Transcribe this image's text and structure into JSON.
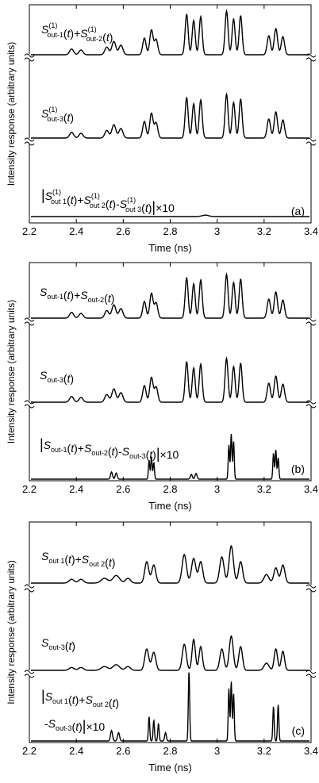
{
  "chart_data": [
    {
      "type": "line",
      "panel_label": "(a)",
      "xlabel": "Time (ns)",
      "ylabel": "Intensity response (arbitrary units)",
      "xlim": [
        2.2,
        3.4
      ],
      "x_ticks": [
        "2.2",
        "2.4",
        "2.6",
        "2.8",
        "3",
        "3.2",
        "3.4"
      ],
      "series": [
        {
          "name": "S(1)out-1(t)+S(1)out-2(t)",
          "peaks": [
            [
              2.38,
              0.12,
              0.012
            ],
            [
              2.42,
              0.1,
              0.012
            ],
            [
              2.53,
              0.16,
              0.012
            ],
            [
              2.56,
              0.28,
              0.012
            ],
            [
              2.59,
              0.2,
              0.012
            ],
            [
              2.69,
              0.35,
              0.01
            ],
            [
              2.72,
              0.52,
              0.01
            ],
            [
              2.74,
              0.32,
              0.01
            ],
            [
              2.87,
              0.85,
              0.009
            ],
            [
              2.9,
              0.72,
              0.009
            ],
            [
              2.93,
              0.8,
              0.009
            ],
            [
              3.04,
              0.92,
              0.009
            ],
            [
              3.07,
              0.75,
              0.009
            ],
            [
              3.1,
              0.82,
              0.009
            ],
            [
              3.22,
              0.4,
              0.01
            ],
            [
              3.25,
              0.55,
              0.01
            ],
            [
              3.28,
              0.38,
              0.01
            ]
          ]
        },
        {
          "name": "S(1)out-3(t)",
          "peaks": [
            [
              2.38,
              0.12,
              0.012
            ],
            [
              2.42,
              0.1,
              0.012
            ],
            [
              2.53,
              0.16,
              0.012
            ],
            [
              2.56,
              0.28,
              0.012
            ],
            [
              2.59,
              0.2,
              0.012
            ],
            [
              2.69,
              0.35,
              0.01
            ],
            [
              2.72,
              0.52,
              0.01
            ],
            [
              2.74,
              0.32,
              0.01
            ],
            [
              2.87,
              0.85,
              0.009
            ],
            [
              2.9,
              0.72,
              0.009
            ],
            [
              2.93,
              0.8,
              0.009
            ],
            [
              3.04,
              0.92,
              0.009
            ],
            [
              3.07,
              0.75,
              0.009
            ],
            [
              3.1,
              0.82,
              0.009
            ],
            [
              3.22,
              0.4,
              0.01
            ],
            [
              3.25,
              0.55,
              0.01
            ],
            [
              3.28,
              0.38,
              0.01
            ]
          ]
        },
        {
          "name": "|S(1)out 1(t)+S(1)out 2(t)-S(1)out 3(t)|×10",
          "peaks": [
            [
              2.95,
              0.03,
              0.02
            ]
          ]
        }
      ]
    },
    {
      "type": "line",
      "panel_label": "(b)",
      "xlabel": "Time (ns)",
      "ylabel": "Intensity response (arbitrary units)",
      "xlim": [
        2.2,
        3.4
      ],
      "x_ticks": [
        "2.2",
        "2.4",
        "2.6",
        "2.8",
        "3",
        "3.2",
        "3.4"
      ],
      "series": [
        {
          "name": "Sout-1(t)+Sout-2(t)",
          "peaks": [
            [
              2.38,
              0.12,
              0.012
            ],
            [
              2.42,
              0.1,
              0.012
            ],
            [
              2.53,
              0.16,
              0.012
            ],
            [
              2.56,
              0.28,
              0.012
            ],
            [
              2.59,
              0.2,
              0.012
            ],
            [
              2.69,
              0.35,
              0.01
            ],
            [
              2.72,
              0.52,
              0.01
            ],
            [
              2.74,
              0.32,
              0.01
            ],
            [
              2.87,
              0.85,
              0.009
            ],
            [
              2.9,
              0.72,
              0.009
            ],
            [
              2.93,
              0.8,
              0.009
            ],
            [
              3.04,
              0.92,
              0.009
            ],
            [
              3.07,
              0.75,
              0.009
            ],
            [
              3.1,
              0.82,
              0.009
            ],
            [
              3.22,
              0.4,
              0.01
            ],
            [
              3.25,
              0.55,
              0.01
            ],
            [
              3.28,
              0.38,
              0.01
            ]
          ]
        },
        {
          "name": "Sout-3(t)",
          "peaks": [
            [
              2.38,
              0.12,
              0.012
            ],
            [
              2.42,
              0.1,
              0.012
            ],
            [
              2.53,
              0.16,
              0.012
            ],
            [
              2.56,
              0.28,
              0.012
            ],
            [
              2.59,
              0.2,
              0.012
            ],
            [
              2.69,
              0.35,
              0.01
            ],
            [
              2.72,
              0.52,
              0.01
            ],
            [
              2.74,
              0.32,
              0.01
            ],
            [
              2.87,
              0.85,
              0.009
            ],
            [
              2.9,
              0.72,
              0.009
            ],
            [
              2.93,
              0.8,
              0.009
            ],
            [
              3.04,
              0.92,
              0.009
            ],
            [
              3.07,
              0.75,
              0.009
            ],
            [
              3.1,
              0.82,
              0.009
            ],
            [
              3.22,
              0.4,
              0.01
            ],
            [
              3.25,
              0.55,
              0.01
            ],
            [
              3.28,
              0.38,
              0.01
            ]
          ]
        },
        {
          "name": "|Sout-1(t)+Sout-2(t)-Sout-3(t)|×10",
          "peaks": [
            [
              2.55,
              0.15,
              0.006
            ],
            [
              2.57,
              0.13,
              0.006
            ],
            [
              2.71,
              0.4,
              0.004
            ],
            [
              2.72,
              0.48,
              0.004
            ],
            [
              2.73,
              0.35,
              0.004
            ],
            [
              2.89,
              0.1,
              0.006
            ],
            [
              2.91,
              0.12,
              0.006
            ],
            [
              3.05,
              0.72,
              0.004
            ],
            [
              3.06,
              0.95,
              0.004
            ],
            [
              3.07,
              0.8,
              0.004
            ],
            [
              3.24,
              0.55,
              0.004
            ],
            [
              3.25,
              0.62,
              0.004
            ],
            [
              3.26,
              0.45,
              0.004
            ]
          ]
        }
      ]
    },
    {
      "type": "line",
      "panel_label": "(c)",
      "xlabel": "Time (ns)",
      "ylabel": "Intensity response (arbitrary units)",
      "xlim": [
        2.2,
        3.4
      ],
      "x_ticks": [
        "2.2",
        "2.4",
        "2.6",
        "2.8",
        "3",
        "3.2",
        "3.4"
      ],
      "series": [
        {
          "name": "Sout 1(t)+Sout 2(t)",
          "peaks": [
            [
              2.38,
              0.08,
              0.015
            ],
            [
              2.42,
              0.08,
              0.015
            ],
            [
              2.52,
              0.1,
              0.02
            ],
            [
              2.57,
              0.16,
              0.02
            ],
            [
              2.62,
              0.1,
              0.015
            ],
            [
              2.7,
              0.45,
              0.012
            ],
            [
              2.73,
              0.38,
              0.012
            ],
            [
              2.86,
              0.6,
              0.013
            ],
            [
              2.9,
              0.52,
              0.013
            ],
            [
              2.93,
              0.45,
              0.012
            ],
            [
              3.02,
              0.55,
              0.013
            ],
            [
              3.06,
              0.78,
              0.013
            ],
            [
              3.1,
              0.45,
              0.012
            ],
            [
              3.21,
              0.18,
              0.015
            ],
            [
              3.25,
              0.32,
              0.012
            ],
            [
              3.28,
              0.38,
              0.012
            ]
          ]
        },
        {
          "name": "Sout-3(t)",
          "peaks": [
            [
              2.38,
              0.06,
              0.015
            ],
            [
              2.42,
              0.06,
              0.015
            ],
            [
              2.52,
              0.08,
              0.02
            ],
            [
              2.57,
              0.12,
              0.02
            ],
            [
              2.62,
              0.08,
              0.015
            ],
            [
              2.7,
              0.45,
              0.012
            ],
            [
              2.73,
              0.38,
              0.012
            ],
            [
              2.86,
              0.55,
              0.012
            ],
            [
              2.9,
              0.65,
              0.01
            ],
            [
              2.93,
              0.5,
              0.01
            ],
            [
              3.02,
              0.45,
              0.012
            ],
            [
              3.06,
              0.72,
              0.012
            ],
            [
              3.1,
              0.5,
              0.011
            ],
            [
              3.21,
              0.15,
              0.015
            ],
            [
              3.25,
              0.45,
              0.01
            ],
            [
              3.28,
              0.4,
              0.01
            ]
          ]
        },
        {
          "name_line1": "|Sout 1(t)+Sout 2(t)",
          "name_line2": "-Sout-3(t)|×10",
          "peaks": [
            [
              2.55,
              0.15,
              0.006
            ],
            [
              2.58,
              0.12,
              0.006
            ],
            [
              2.71,
              0.35,
              0.004
            ],
            [
              2.73,
              0.3,
              0.004
            ],
            [
              2.75,
              0.25,
              0.004
            ],
            [
              2.78,
              0.12,
              0.005
            ],
            [
              2.88,
              1.0,
              0.004
            ],
            [
              3.05,
              0.75,
              0.004
            ],
            [
              3.06,
              0.85,
              0.004
            ],
            [
              3.07,
              0.68,
              0.004
            ],
            [
              3.24,
              0.5,
              0.004
            ],
            [
              3.26,
              0.52,
              0.004
            ]
          ]
        }
      ]
    }
  ]
}
